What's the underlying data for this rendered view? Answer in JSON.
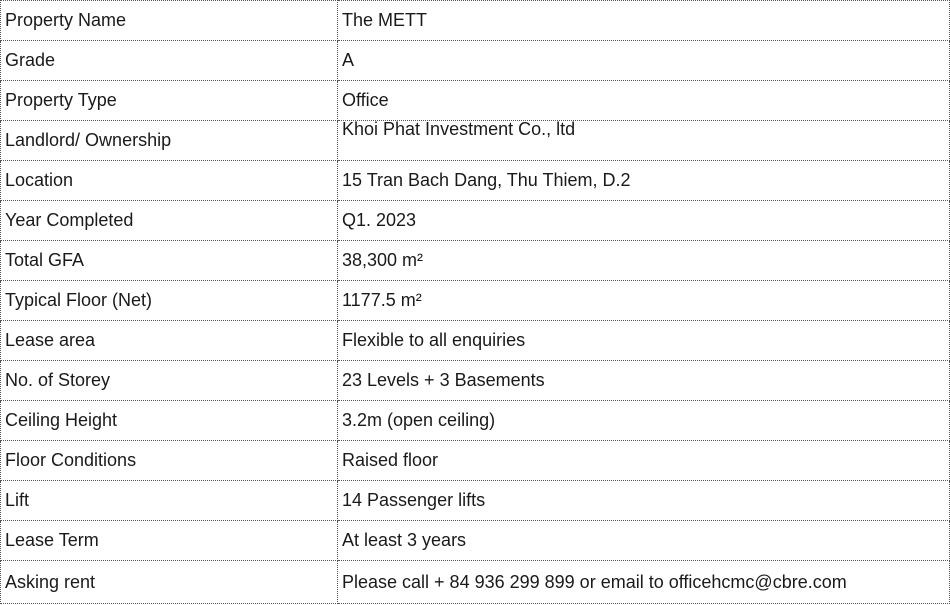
{
  "table": {
    "rows": [
      [
        "Property Name",
        "The METT"
      ],
      [
        "Grade",
        "A"
      ],
      [
        "Property Type",
        "Office"
      ],
      [
        "Landlord/ Ownership",
        "Khoi Phat Investment Co., ltd"
      ],
      [
        "Location",
        "15 Tran Bach Dang, Thu Thiem, D.2"
      ],
      [
        "Year Completed",
        "Q1. 2023"
      ],
      [
        "Total GFA",
        "38,300 m²"
      ],
      [
        "Typical Floor (Net)",
        "1177.5 m²"
      ],
      [
        "Lease area",
        "Flexible to all enquiries"
      ],
      [
        "No. of Storey",
        "23 Levels + 3 Basements"
      ],
      [
        "Ceiling Height",
        "3.2m (open ceiling)"
      ],
      [
        "Floor Conditions",
        "Raised floor"
      ],
      [
        "Lift",
        "14 Passenger lifts"
      ],
      [
        "Lease Term",
        "At least 3 years"
      ],
      [
        "Asking rent",
        "Please call + 84 936 299 899 or email to officehcmc@cbre.com"
      ]
    ]
  }
}
